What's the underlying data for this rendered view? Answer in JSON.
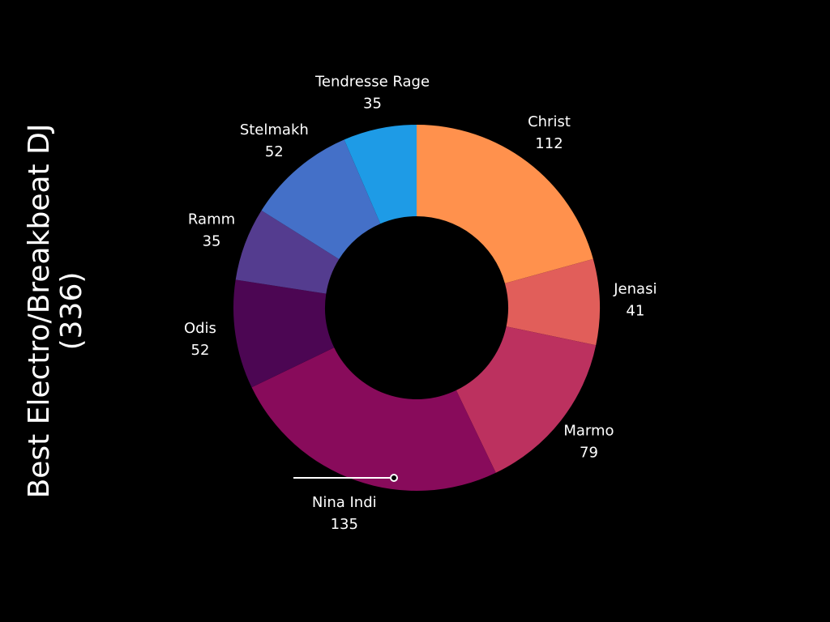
{
  "chart_data": {
    "type": "pie",
    "title": [
      "Best Electro/Breakbeat DJ",
      "(336)"
    ],
    "categories": [
      "Christ",
      "Jenasi",
      "Marmo",
      "Nina Indi",
      "Odis",
      "Ramm",
      "Stelmakh",
      "Tendresse Rage"
    ],
    "values": [
      112,
      41,
      79,
      135,
      52,
      35,
      52,
      35
    ],
    "colors": [
      "#ff914d",
      "#e15e5a",
      "#bc315f",
      "#880b5b",
      "#4c0653",
      "#543c8f",
      "#4470c8",
      "#1e9be6"
    ],
    "donut": true
  }
}
